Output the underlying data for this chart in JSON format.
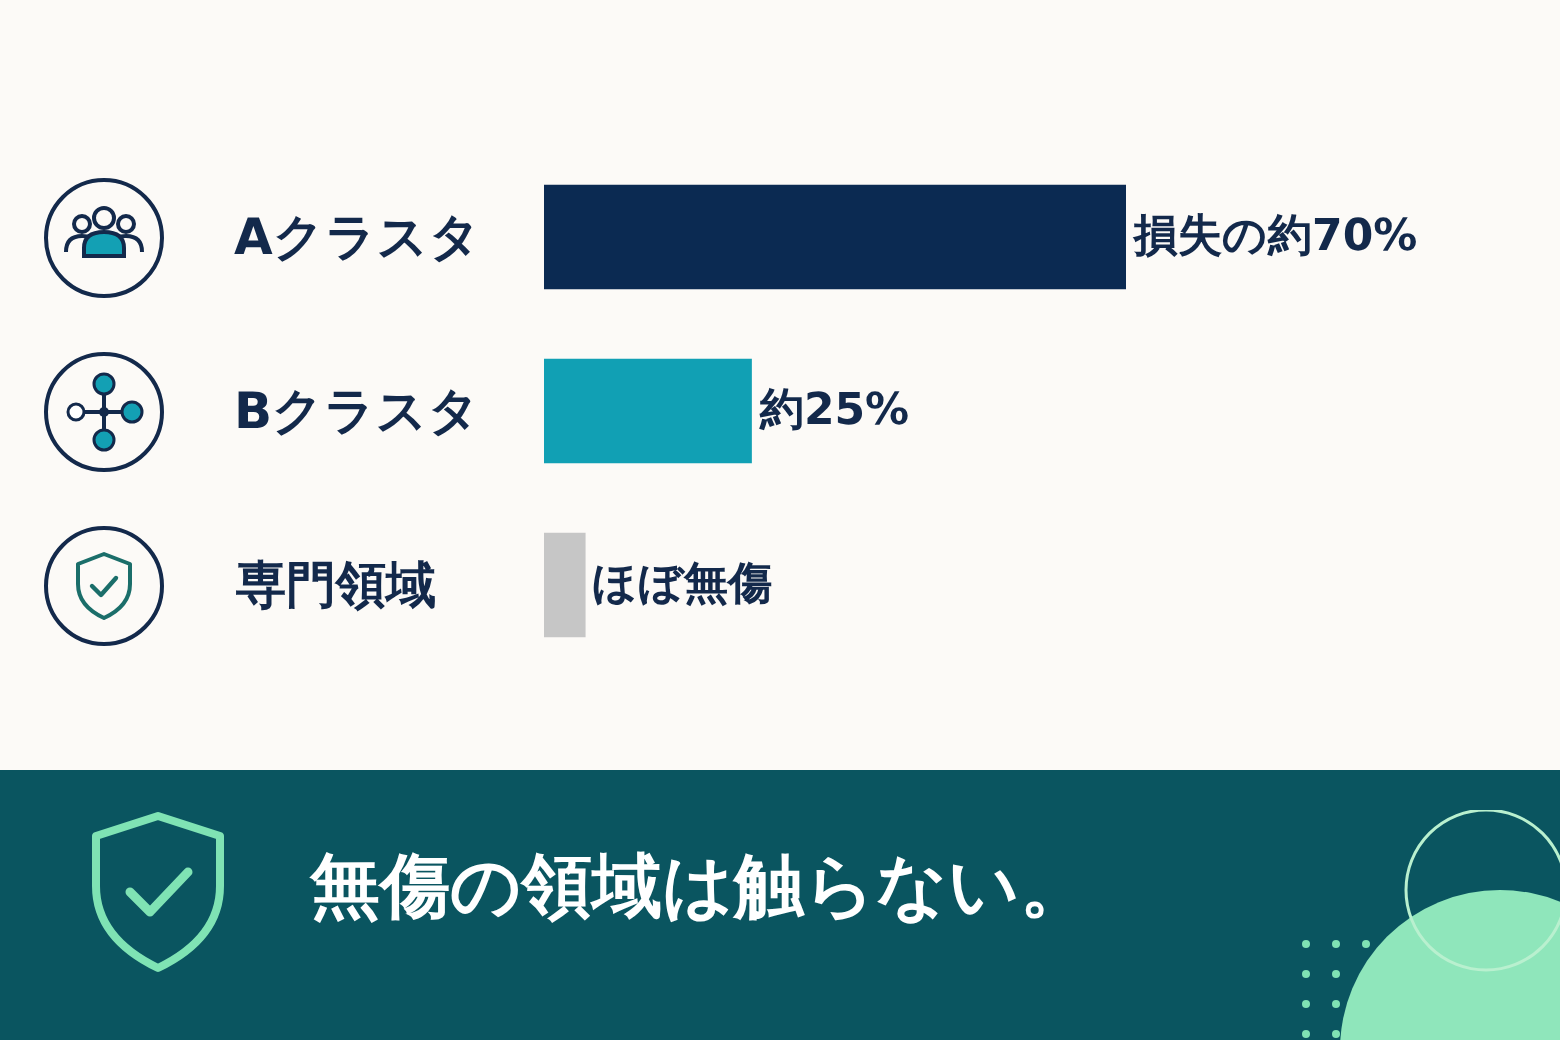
{
  "chart_data": {
    "type": "bar",
    "orientation": "horizontal",
    "categories": [
      "Aクラスタ",
      "Bクラスタ",
      "専門領域"
    ],
    "values": [
      70,
      25,
      5
    ],
    "colors": [
      "#0b2a52",
      "#11a0b4",
      "#c6c6c6"
    ],
    "value_labels": [
      "損失の約70%",
      "約25%",
      "ほぼ無傷"
    ],
    "annotations": [
      "無傷の領域は触らない。"
    ]
  }
}
